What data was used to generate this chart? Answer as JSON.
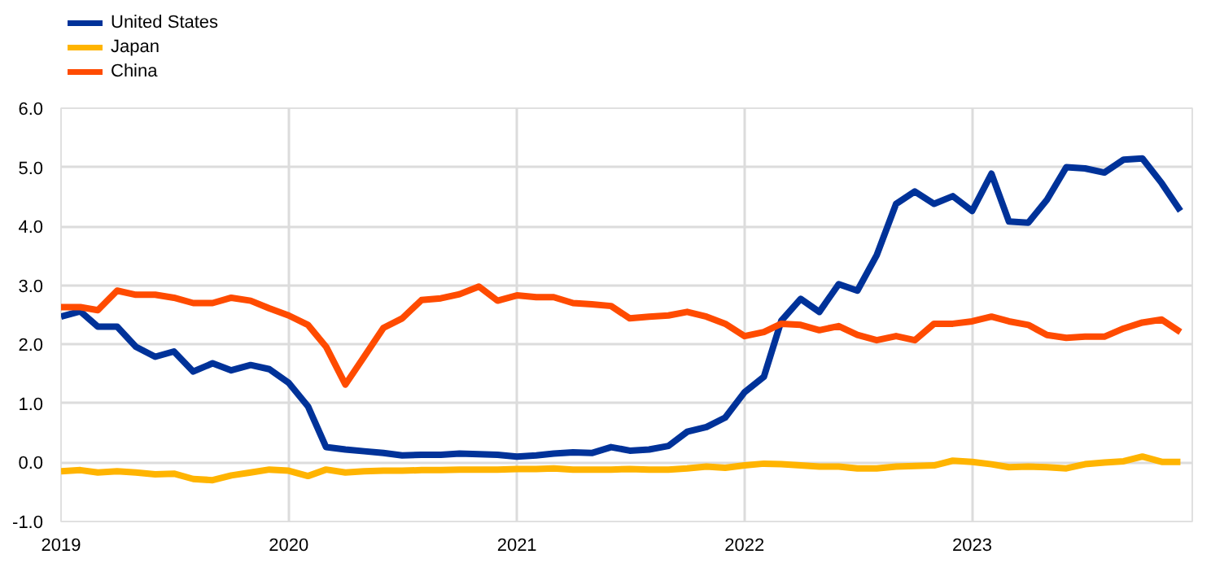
{
  "chart_data": {
    "type": "line",
    "x": [
      "2019-01",
      "2019-02",
      "2019-03",
      "2019-04",
      "2019-05",
      "2019-06",
      "2019-07",
      "2019-08",
      "2019-09",
      "2019-10",
      "2019-11",
      "2019-12",
      "2020-01",
      "2020-02",
      "2020-03",
      "2020-04",
      "2020-05",
      "2020-06",
      "2020-07",
      "2020-08",
      "2020-09",
      "2020-10",
      "2020-11",
      "2020-12",
      "2021-01",
      "2021-02",
      "2021-03",
      "2021-04",
      "2021-05",
      "2021-06",
      "2021-07",
      "2021-08",
      "2021-09",
      "2021-10",
      "2021-11",
      "2021-12",
      "2022-01",
      "2022-02",
      "2022-03",
      "2022-04",
      "2022-05",
      "2022-06",
      "2022-07",
      "2022-08",
      "2022-09",
      "2022-10",
      "2022-11",
      "2022-12",
      "2023-01",
      "2023-02",
      "2023-03",
      "2023-04",
      "2023-05",
      "2023-06",
      "2023-07",
      "2023-08",
      "2023-09",
      "2023-10",
      "2023-11",
      "2023-12"
    ],
    "series": [
      {
        "name": "United States",
        "color": "#003299",
        "values": [
          2.47,
          2.56,
          2.3,
          2.3,
          1.96,
          1.79,
          1.88,
          1.54,
          1.68,
          1.56,
          1.65,
          1.58,
          1.35,
          0.95,
          0.26,
          0.22,
          0.19,
          0.16,
          0.12,
          0.13,
          0.13,
          0.15,
          0.14,
          0.13,
          0.1,
          0.12,
          0.15,
          0.17,
          0.16,
          0.26,
          0.2,
          0.22,
          0.28,
          0.52,
          0.6,
          0.76,
          1.19,
          1.45,
          2.4,
          2.77,
          2.55,
          3.02,
          2.91,
          3.51,
          4.38,
          4.59,
          4.38,
          4.51,
          4.26,
          4.89,
          4.08,
          4.06,
          4.45,
          5.0,
          4.98,
          4.91,
          5.13,
          5.15,
          4.73,
          4.26
        ]
      },
      {
        "name": "Japan",
        "color": "#ffb400",
        "values": [
          -0.15,
          -0.13,
          -0.17,
          -0.15,
          -0.17,
          -0.2,
          -0.19,
          -0.28,
          -0.3,
          -0.22,
          -0.17,
          -0.12,
          -0.14,
          -0.23,
          -0.12,
          -0.17,
          -0.15,
          -0.14,
          -0.14,
          -0.13,
          -0.13,
          -0.12,
          -0.12,
          -0.12,
          -0.11,
          -0.11,
          -0.1,
          -0.12,
          -0.12,
          -0.12,
          -0.11,
          -0.12,
          -0.12,
          -0.1,
          -0.07,
          -0.09,
          -0.05,
          -0.02,
          -0.03,
          -0.05,
          -0.07,
          -0.07,
          -0.1,
          -0.1,
          -0.07,
          -0.06,
          -0.05,
          0.03,
          0.01,
          -0.03,
          -0.08,
          -0.07,
          -0.08,
          -0.1,
          -0.03,
          0.0,
          0.02,
          0.1,
          0.01,
          0.01
        ]
      },
      {
        "name": "China",
        "color": "#ff4b00",
        "values": [
          2.63,
          2.63,
          2.58,
          2.91,
          2.84,
          2.84,
          2.79,
          2.7,
          2.7,
          2.79,
          2.74,
          2.61,
          2.49,
          2.33,
          1.96,
          1.32,
          1.79,
          2.28,
          2.44,
          2.75,
          2.78,
          2.85,
          2.98,
          2.74,
          2.83,
          2.8,
          2.8,
          2.7,
          2.68,
          2.65,
          2.44,
          2.47,
          2.49,
          2.55,
          2.47,
          2.35,
          2.14,
          2.21,
          2.35,
          2.33,
          2.24,
          2.31,
          2.16,
          2.07,
          2.14,
          2.07,
          2.35,
          2.35,
          2.39,
          2.47,
          2.39,
          2.33,
          2.16,
          2.11,
          2.13,
          2.13,
          2.27,
          2.37,
          2.42,
          2.21
        ]
      }
    ],
    "xlim": [
      "2019-01",
      "2023-12-20"
    ],
    "xticks": [
      {
        "value": "2019-01",
        "label": "2019"
      },
      {
        "value": "2020-01",
        "label": "2020"
      },
      {
        "value": "2021-01",
        "label": "2021"
      },
      {
        "value": "2022-01",
        "label": "2022"
      },
      {
        "value": "2023-01",
        "label": "2023"
      }
    ],
    "ylim": [
      -1,
      6
    ],
    "yticks": [
      {
        "value": -1,
        "label": "-1.0"
      },
      {
        "value": 0,
        "label": "0.0"
      },
      {
        "value": 1,
        "label": "1.0"
      },
      {
        "value": 2,
        "label": "2.0"
      },
      {
        "value": 3,
        "label": "3.0"
      },
      {
        "value": 4,
        "label": "4.0"
      },
      {
        "value": 5,
        "label": "5.0"
      },
      {
        "value": 6,
        "label": "6.0"
      }
    ],
    "grid": true,
    "legend": "top left",
    "marker": "none",
    "line_style": "solid"
  }
}
